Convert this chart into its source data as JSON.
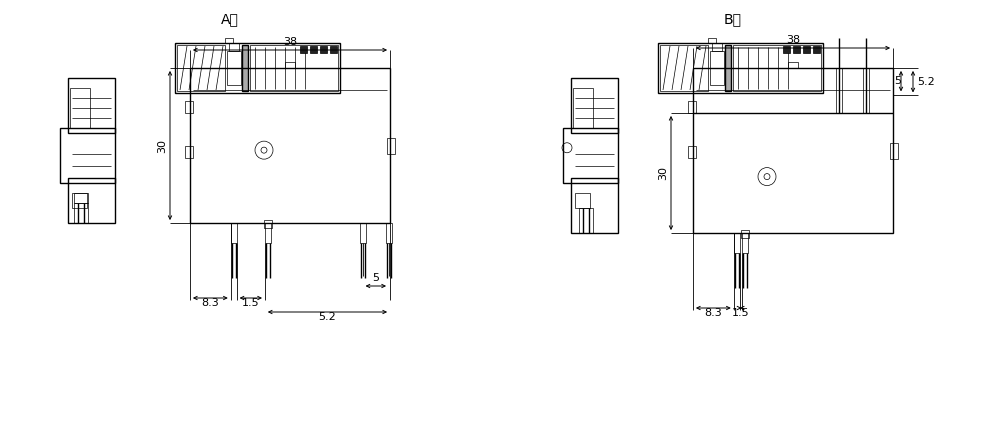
{
  "title_A": "A型",
  "title_B": "B型",
  "dim_38": "38",
  "dim_30": "30",
  "dim_8_3": "8.3",
  "dim_1_5": "1.5",
  "dim_5": "5",
  "dim_5_2": "5.2",
  "line_color": "#000000",
  "bg_color": "#ffffff",
  "lw_main": 1.0,
  "lw_thin": 0.5,
  "font_size_title": 10,
  "font_size_dim": 8
}
